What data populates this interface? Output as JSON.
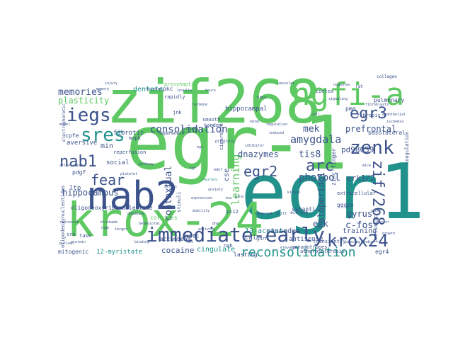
{
  "colors": {
    "background": "#ffffff",
    "palette": [
      "#440154",
      "#3b528b",
      "#21918c",
      "#5ec962",
      "#fde725"
    ]
  },
  "words": {
    "zif268": "zif268",
    "egr_1": "egr-1",
    "egr1": "egr1",
    "krox_24": "krox-24",
    "nab2": "nab2",
    "ngfi_a": "ngfi-a",
    "immediate_early": "immediate-early",
    "iegs": "iegs",
    "sres": "sres",
    "egr3": "egr3",
    "zenk": "zenk",
    "nab1": "nab1",
    "fear": "fear",
    "egr2": "egr2",
    "arc": "arc",
    "krox24": "krox24",
    "zif_268": "zif/268",
    "reconsolidation": "reconsolidation",
    "consolidation": "consolidation",
    "amygdala": "amygdala",
    "memories": "memories",
    "plasticity": "plasticity",
    "dentate": "dentate",
    "hippocampus": "hippocampus",
    "contextual": "contextual",
    "learning": "learning",
    "phorbol": "phorbol",
    "dnazymes": "dnazymes",
    "erk1_2": "erk1/2",
    "c_fos": "c-fos",
    "mek": "mek",
    "tis8": "tis8",
    "gyrus": "gyrus",
    "prefrontal": "prefrontal",
    "pd98059": "pd98059",
    "hippocampal": "hippocampal",
    "basolateral": "basolateral",
    "cocaine": "cocaine",
    "cingulate": "cingulate",
    "haloperidol": "haloperidol",
    "twelve_myristate": "12-myristate",
    "thirteen_acetate": "13-acetate",
    "oligodeoxyribonucleotide": "oligodeoxyribonucleotide",
    "oligodeoxynucleotides": "oligodeoxynucleotides",
    "cascades": "cascades",
    "antisense": "antisense",
    "training": "training",
    "ltp": "ltp",
    "fibrotic": "fibrotic",
    "aversive": "aversive",
    "min": "min",
    "social": "social",
    "pdgf": "pdgf",
    "cpfe": "cpfe",
    "mitogenic": "mitogenic",
    "erk": "erk",
    "accumbens": "accumbens",
    "cse": "cse",
    "lasting": "lasting",
    "egr4": "egr4",
    "cortices": "cortices",
    "mpfc": "mpfc",
    "synaptic": "synaptic",
    "zinc_finger": "zinc-finger",
    "pulmonary": "pulmonary",
    "gggps": "gggps",
    "prelimbic": "prelimbic",
    "transiently": "transiently",
    "pma": "pma",
    "pkc": "pkc",
    "rapidly": "rapidly",
    "jnk": "jnk",
    "pc12": "pc12",
    "nab": "nab",
    "cal": "cal",
    "stimuli": "stimuli",
    "fibrosis": "fibrosis",
    "task": "task",
    "sre": "sre",
    "mapk": "mapk",
    "gonadotropes": "gonadotropes",
    "extracellular": "extracellular",
    "cortex": "cortex",
    "lh": "lh",
    "reperfusion": "reperfusion",
    "coagulation": "coagulation",
    "presynaptic": "presynaptic",
    "tandem": "tandem",
    "cigarette": "cigarette",
    "atherosclerosis": "atherosclerosis",
    "gnrh": "gnrh",
    "smooth": "smooth",
    "collagen": "collagen",
    "electrophoretic": "electrophoretic",
    "acetate": "acetate",
    "heparanase": "heparanase",
    "hours": "hours",
    "egr": "egr",
    "bdnf": "bdnf",
    "neurons": "neurons",
    "anxiety": "anxiety",
    "expression": "expression",
    "prostaglandin": "prostaglandin",
    "vascular": "vascular",
    "regulation": "regulation",
    "induced": "induced",
    "retrieval": "retrieval",
    "tgf": "tgf",
    "mobility": "mobility",
    "blockade": "blockade",
    "rage": "rage",
    "target": "target",
    "nuclear": "nuclear",
    "protein": "protein",
    "binding": "binding",
    "dopamine": "dopamine",
    "stress": "stress",
    "behavioral": "behavioral",
    "pathway": "pathway",
    "platelet": "platelet",
    "signaling": "signaling",
    "cell": "cell",
    "rat": "rat",
    "mice": "mice",
    "gene": "gene",
    "factor": "factor",
    "growth": "growth",
    "kinase": "kinase",
    "shift": "shift",
    "enhanced": "enhanced",
    "elevated": "elevated",
    "inhibitor": "inhibitor",
    "tumor": "tumor",
    "renal": "renal",
    "insulin": "insulin",
    "hormone": "hormone",
    "pituitary": "pituitary",
    "rna": "rna",
    "mrna": "mrna",
    "dna": "dna",
    "activity": "activity",
    "response": "response",
    "fibroblasts": "fibroblasts",
    "endothelial": "endothelial",
    "ischemia": "ischemia",
    "neuronal": "neuronal",
    "memory": "memory",
    "injury": "injury",
    "model": "model",
    "stimulation": "stimulation",
    "repressor": "repressor"
  }
}
